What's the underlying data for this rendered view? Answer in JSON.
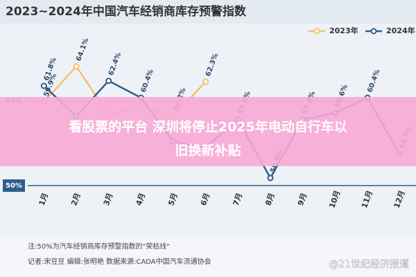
{
  "chart_data": {
    "type": "line",
    "title": "2023~2024年中国汽车经销商库存预警指数",
    "categories": [
      "1月",
      "2月",
      "3月",
      "4月",
      "5月",
      "6月",
      "7月",
      "8月",
      "9月",
      "10月",
      "11月",
      "12月"
    ],
    "series": [
      {
        "name": "2023年",
        "color": "#f0c36a",
        "values": [
          59.9,
          64.1,
          58.4,
          59.3,
          58.2,
          62.3,
          null,
          null,
          null,
          null,
          null,
          null
        ],
        "value_labels": [
          "59.9%",
          "64.1%",
          null,
          null,
          "58.2%",
          "62.3%",
          null,
          null,
          null,
          null,
          null,
          null
        ]
      },
      {
        "name": "2024年",
        "color": "#2f5d8c",
        "values": [
          61.8,
          58.2,
          62.4,
          60.4,
          55.2,
          54.5,
          57.8,
          50.9,
          57.8,
          58.6,
          60.4,
          53.7
        ],
        "value_labels": [
          "61.8%",
          null,
          "62.4%",
          "60.4%",
          null,
          null,
          "57.8%",
          "50.9%",
          "57.8%",
          "58.6%",
          "60.4%",
          "53.7%"
        ]
      }
    ],
    "ylim": [
      48,
      68
    ],
    "yticks": [
      {
        "value": 50,
        "label": "50%"
      },
      {
        "value": 60,
        "label": "60%"
      }
    ],
    "grid": true,
    "legend": "top-right"
  },
  "banner": {
    "lines": [
      "看股票的平台 深圳将停止2025年电动自行车以",
      "旧换新补贴"
    ]
  },
  "footnotes": [
    "注:50%为汽车经销商库存预警指数的\"荣枯线\"",
    "记者:宋豆豆   编辑:张明艳   数据来源:CADA中国汽车流通协会"
  ],
  "watermarks": [
    "@21世纪经济报道"
  ]
}
